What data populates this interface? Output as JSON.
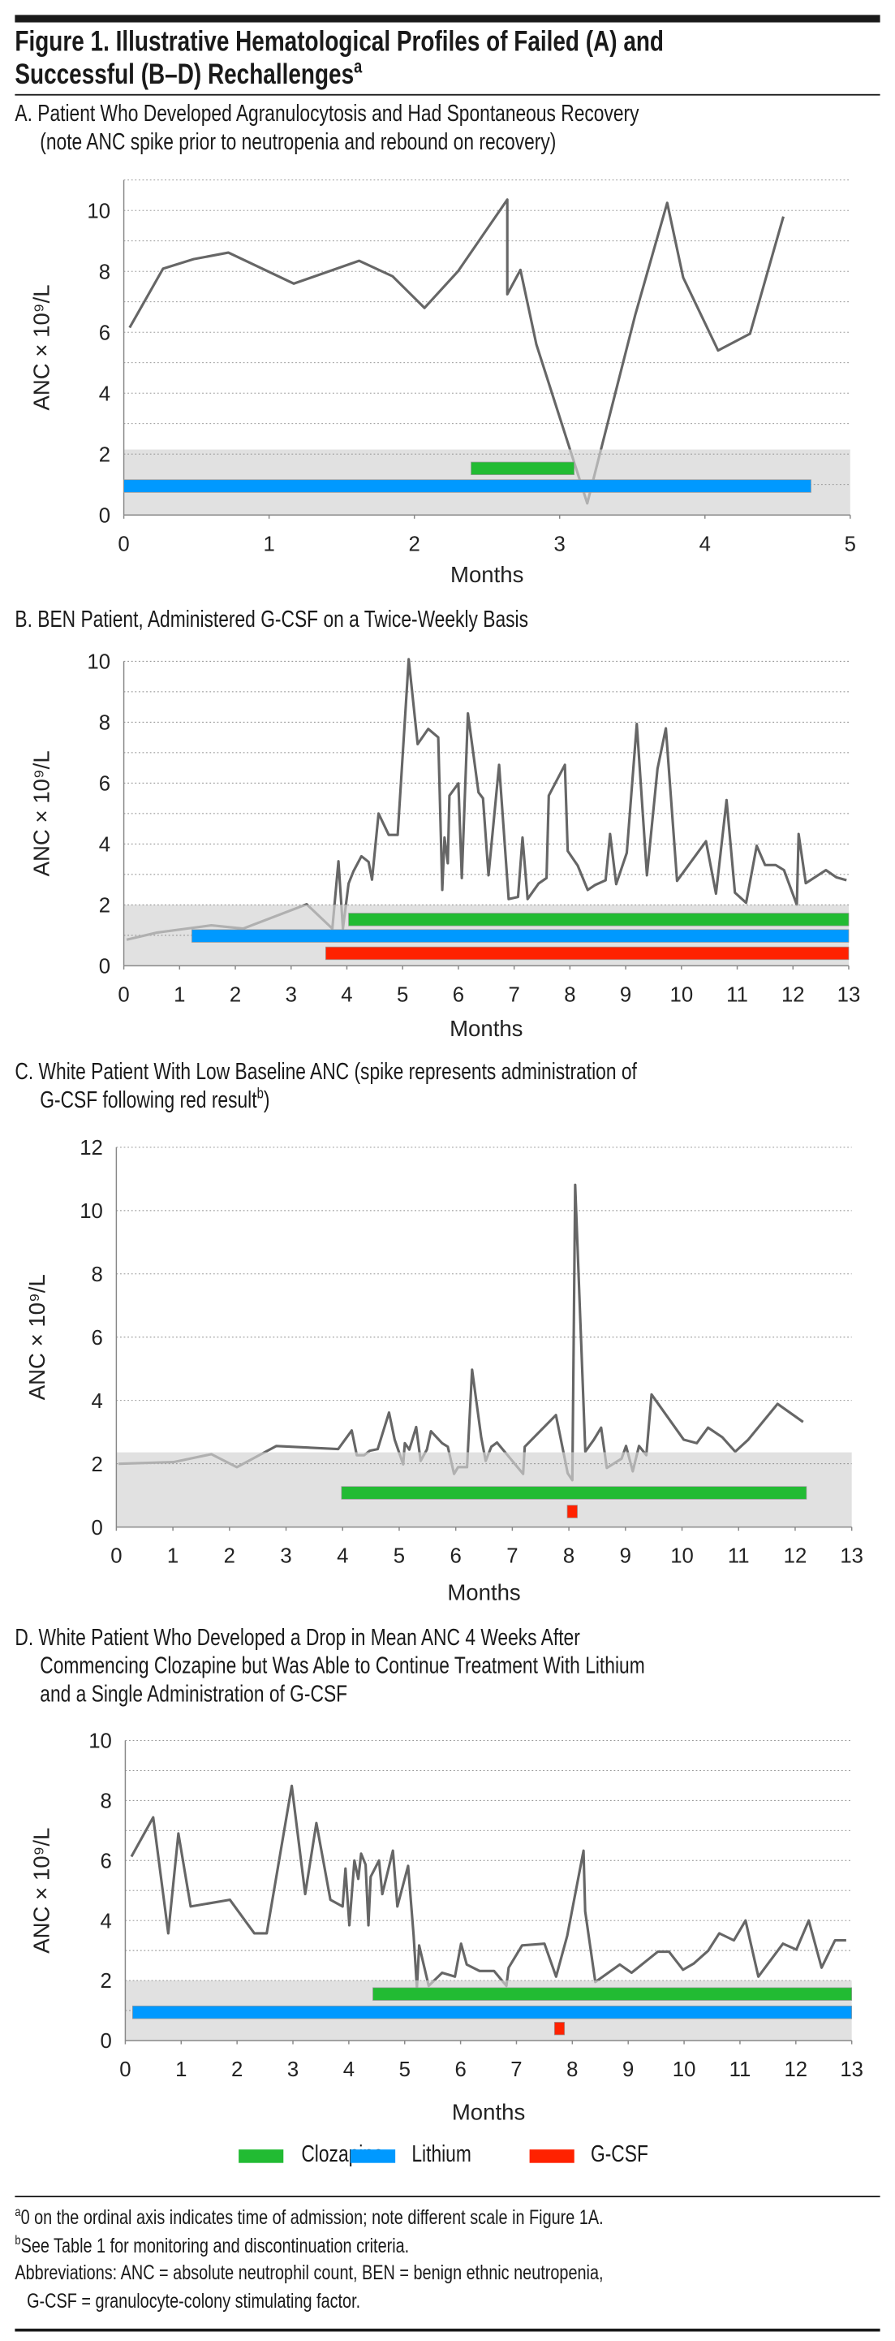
{
  "figure": {
    "title_lines": [
      "Figure 1. Illustrative Hematological Profiles of Failed (A) and",
      "Successful (B–D) Rechallenges"
    ],
    "title_sup": "a"
  },
  "panels": {
    "A": {
      "lines": [
        "A. Patient Who Developed Agranulocytosis and Had Spontaneous Recovery",
        "(note ANC spike prior to neutropenia and rebound on recovery)"
      ]
    },
    "B": {
      "lines": [
        "B. BEN Patient, Administered G-CSF on a Twice-Weekly Basis"
      ]
    },
    "C": {
      "lines": [
        "C. White Patient With Low Baseline ANC (spike represents administration of",
        "G-CSF following red result"
      ],
      "sup": "b",
      "tail": ")"
    },
    "D": {
      "lines": [
        "D. White Patient Who Developed a Drop in Mean ANC 4 Weeks After",
        "Commencing Clozapine but Was Able to Continue Treatment With Lithium",
        "and a Single Administration of G-CSF"
      ]
    }
  },
  "legend": [
    {
      "name": "Clozapine",
      "color": "#22bb33"
    },
    {
      "name": "Lithium",
      "color": "#0099ff"
    },
    {
      "name": "G-CSF",
      "color": "#ff2200"
    }
  ],
  "footnotes": {
    "a_sup": "a",
    "a_text": "0 on the ordinal axis indicates time of admission; note different scale in Figure 1A.",
    "b_sup": "b",
    "b_text": "See Table 1 for monitoring and discontinuation criteria.",
    "abbrev_line1": "Abbreviations: ANC = absolute neutrophil count, BEN = benign ethnic neutropenia,",
    "abbrev_line2": "G-CSF = granulocyte-colony stimulating factor."
  },
  "colors": {
    "line": "#666666",
    "line_low": "#b0b0b0",
    "shade": "#e1e1e1",
    "clozapine": "#22bb33",
    "lithium": "#0099ff",
    "gcsf": "#ff2200"
  },
  "chart_data": [
    {
      "panel": "A",
      "type": "line",
      "xlabel": "Months",
      "ylabel": "ANC × 10⁹/L",
      "xlim": [
        0,
        5
      ],
      "ylim": [
        0,
        11
      ],
      "xticks": [
        0,
        1,
        2,
        3,
        4,
        5
      ],
      "yticks": [
        0,
        2,
        4,
        6,
        8,
        10
      ],
      "grid_step": 1,
      "grid": true,
      "shaded_below": 2.15,
      "points": [
        [
          0.04,
          6.15
        ],
        [
          0.27,
          8.09
        ],
        [
          0.48,
          8.4
        ],
        [
          0.72,
          8.62
        ],
        [
          1.17,
          7.6
        ],
        [
          1.62,
          8.35
        ],
        [
          1.85,
          7.84
        ],
        [
          2.07,
          6.8
        ],
        [
          2.3,
          8.0
        ],
        [
          2.64,
          10.36
        ],
        [
          2.64,
          7.25
        ],
        [
          2.73,
          8.05
        ],
        [
          2.84,
          5.6
        ],
        [
          3.19,
          0.38
        ],
        [
          3.52,
          6.56
        ],
        [
          3.74,
          10.25
        ],
        [
          3.85,
          7.8
        ],
        [
          4.09,
          5.4
        ],
        [
          4.31,
          5.95
        ],
        [
          4.54,
          9.8
        ]
      ],
      "bars": [
        {
          "name": "Clozapine",
          "start": 2.39,
          "end": 3.1,
          "level": 1.53
        },
        {
          "name": "Lithium",
          "start": 0,
          "end": 4.73,
          "level": 0.95
        }
      ]
    },
    {
      "panel": "B",
      "type": "line",
      "xlabel": "Months",
      "ylabel": "ANC × 10⁹/L",
      "xlim": [
        0,
        13
      ],
      "ylim": [
        0,
        10
      ],
      "xticks": [
        0,
        1,
        2,
        3,
        4,
        5,
        6,
        7,
        8,
        9,
        10,
        11,
        12,
        13
      ],
      "yticks": [
        0,
        2,
        4,
        6,
        8,
        10
      ],
      "grid_step": 1,
      "grid": true,
      "shaded_below": 2.0,
      "points": [
        [
          0.05,
          0.86
        ],
        [
          0.59,
          1.09
        ],
        [
          1.21,
          1.24
        ],
        [
          1.57,
          1.33
        ],
        [
          2.14,
          1.22
        ],
        [
          3.28,
          2.02
        ],
        [
          3.74,
          1.22
        ],
        [
          3.85,
          3.43
        ],
        [
          3.93,
          1.22
        ],
        [
          4.03,
          2.7
        ],
        [
          4.12,
          3.11
        ],
        [
          4.26,
          3.6
        ],
        [
          4.39,
          3.41
        ],
        [
          4.45,
          2.83
        ],
        [
          4.57,
          5.0
        ],
        [
          4.75,
          4.3
        ],
        [
          4.91,
          4.3
        ],
        [
          5.11,
          10.07
        ],
        [
          5.27,
          7.28
        ],
        [
          5.46,
          7.78
        ],
        [
          5.64,
          7.5
        ],
        [
          5.71,
          2.49
        ],
        [
          5.75,
          4.21
        ],
        [
          5.81,
          3.37
        ],
        [
          5.84,
          5.59
        ],
        [
          6.0,
          5.99
        ],
        [
          6.06,
          2.88
        ],
        [
          6.17,
          8.29
        ],
        [
          6.36,
          5.69
        ],
        [
          6.44,
          5.5
        ],
        [
          6.54,
          2.97
        ],
        [
          6.73,
          6.6
        ],
        [
          6.9,
          2.19
        ],
        [
          7.07,
          2.26
        ],
        [
          7.15,
          4.21
        ],
        [
          7.24,
          2.19
        ],
        [
          7.44,
          2.7
        ],
        [
          7.58,
          2.88
        ],
        [
          7.62,
          5.59
        ],
        [
          7.91,
          6.6
        ],
        [
          7.96,
          3.77
        ],
        [
          8.14,
          3.29
        ],
        [
          8.32,
          2.49
        ],
        [
          8.45,
          2.65
        ],
        [
          8.64,
          2.81
        ],
        [
          8.72,
          4.33
        ],
        [
          8.83,
          2.68
        ],
        [
          9.02,
          3.71
        ],
        [
          9.2,
          7.94
        ],
        [
          9.38,
          2.97
        ],
        [
          9.57,
          6.47
        ],
        [
          9.72,
          7.8
        ],
        [
          9.92,
          2.79
        ],
        [
          10.44,
          4.09
        ],
        [
          10.62,
          2.37
        ],
        [
          10.81,
          5.44
        ],
        [
          10.96,
          2.4
        ],
        [
          11.16,
          2.07
        ],
        [
          11.35,
          3.94
        ],
        [
          11.5,
          3.31
        ],
        [
          11.69,
          3.31
        ],
        [
          11.84,
          3.14
        ],
        [
          12.07,
          2.0
        ],
        [
          12.1,
          4.33
        ],
        [
          12.23,
          2.71
        ],
        [
          12.59,
          3.14
        ],
        [
          12.78,
          2.9
        ],
        [
          12.96,
          2.81
        ]
      ],
      "bars": [
        {
          "name": "Clozapine",
          "start": 4.03,
          "end": 13,
          "level": 1.52
        },
        {
          "name": "Lithium",
          "start": 1.22,
          "end": 13,
          "level": 0.98
        },
        {
          "name": "G-CSF",
          "start": 3.62,
          "end": 13,
          "level": 0.41
        }
      ]
    },
    {
      "panel": "C",
      "type": "line",
      "xlabel": "Months",
      "ylabel": "ANC × 10⁹/L",
      "xlim": [
        0,
        13
      ],
      "ylim": [
        0,
        12
      ],
      "xticks": [
        0,
        1,
        2,
        3,
        4,
        5,
        6,
        7,
        8,
        9,
        10,
        11,
        12,
        13
      ],
      "yticks": [
        0,
        2,
        4,
        6,
        8,
        10,
        12
      ],
      "grid_step": 2,
      "grid": true,
      "shaded_below": 2.36,
      "points": [
        [
          0.04,
          2.0
        ],
        [
          1.01,
          2.05
        ],
        [
          1.68,
          2.3
        ],
        [
          2.13,
          1.89
        ],
        [
          2.83,
          2.56
        ],
        [
          3.92,
          2.46
        ],
        [
          4.16,
          3.05
        ],
        [
          4.25,
          2.27
        ],
        [
          4.38,
          2.27
        ],
        [
          4.48,
          2.41
        ],
        [
          4.62,
          2.46
        ],
        [
          4.82,
          3.62
        ],
        [
          4.92,
          2.76
        ],
        [
          5.07,
          1.98
        ],
        [
          5.1,
          2.65
        ],
        [
          5.18,
          2.45
        ],
        [
          5.3,
          3.16
        ],
        [
          5.38,
          2.09
        ],
        [
          5.49,
          2.45
        ],
        [
          5.56,
          3.03
        ],
        [
          5.76,
          2.65
        ],
        [
          5.86,
          2.54
        ],
        [
          5.97,
          1.68
        ],
        [
          6.04,
          1.89
        ],
        [
          6.2,
          1.89
        ],
        [
          6.29,
          4.97
        ],
        [
          6.45,
          2.84
        ],
        [
          6.53,
          2.09
        ],
        [
          6.63,
          2.54
        ],
        [
          6.73,
          2.67
        ],
        [
          7.19,
          1.68
        ],
        [
          7.22,
          2.54
        ],
        [
          7.77,
          3.54
        ],
        [
          7.98,
          1.7
        ],
        [
          8.06,
          1.48
        ],
        [
          8.11,
          10.81
        ],
        [
          8.29,
          2.38
        ],
        [
          8.44,
          2.76
        ],
        [
          8.57,
          3.14
        ],
        [
          8.67,
          1.87
        ],
        [
          8.93,
          2.16
        ],
        [
          9.01,
          2.56
        ],
        [
          9.13,
          1.76
        ],
        [
          9.24,
          2.56
        ],
        [
          9.37,
          2.27
        ],
        [
          9.46,
          4.19
        ],
        [
          10.03,
          2.76
        ],
        [
          10.26,
          2.65
        ],
        [
          10.46,
          3.14
        ],
        [
          10.71,
          2.84
        ],
        [
          10.94,
          2.38
        ],
        [
          11.17,
          2.76
        ],
        [
          11.69,
          3.89
        ],
        [
          12.14,
          3.32
        ]
      ],
      "bars": [
        {
          "name": "Clozapine",
          "start": 3.98,
          "end": 12.2,
          "level": 1.08
        },
        {
          "name": "G-CSF",
          "start": 7.97,
          "end": 8.15,
          "level": 0.49
        }
      ]
    },
    {
      "panel": "D",
      "type": "line",
      "xlabel": "Months",
      "ylabel": "ANC × 10⁹/L",
      "xlim": [
        0,
        13
      ],
      "ylim": [
        0,
        10
      ],
      "xticks": [
        0,
        1,
        2,
        3,
        4,
        5,
        6,
        7,
        8,
        9,
        10,
        11,
        12,
        13
      ],
      "yticks": [
        0,
        2,
        4,
        6,
        8,
        10
      ],
      "grid_step": 1,
      "grid": true,
      "shaded_below": 2.0,
      "points": [
        [
          0.11,
          6.13
        ],
        [
          0.5,
          7.44
        ],
        [
          0.77,
          3.57
        ],
        [
          0.95,
          6.9
        ],
        [
          1.17,
          4.47
        ],
        [
          1.87,
          4.69
        ],
        [
          2.31,
          3.57
        ],
        [
          2.53,
          3.57
        ],
        [
          2.98,
          8.49
        ],
        [
          3.22,
          4.88
        ],
        [
          3.42,
          7.25
        ],
        [
          3.67,
          4.69
        ],
        [
          3.89,
          4.47
        ],
        [
          3.94,
          5.73
        ],
        [
          4.01,
          3.84
        ],
        [
          4.1,
          6.0
        ],
        [
          4.17,
          5.39
        ],
        [
          4.22,
          6.23
        ],
        [
          4.3,
          5.86
        ],
        [
          4.35,
          3.84
        ],
        [
          4.39,
          5.46
        ],
        [
          4.54,
          6.0
        ],
        [
          4.6,
          4.88
        ],
        [
          4.79,
          6.33
        ],
        [
          4.87,
          4.47
        ],
        [
          5.06,
          5.82
        ],
        [
          5.16,
          3.5
        ],
        [
          5.22,
          1.75
        ],
        [
          5.26,
          3.17
        ],
        [
          5.43,
          1.82
        ],
        [
          5.67,
          2.26
        ],
        [
          5.9,
          2.13
        ],
        [
          6.01,
          3.23
        ],
        [
          6.11,
          2.53
        ],
        [
          6.34,
          2.32
        ],
        [
          6.6,
          2.32
        ],
        [
          6.82,
          1.82
        ],
        [
          6.86,
          2.43
        ],
        [
          7.1,
          3.17
        ],
        [
          7.5,
          3.23
        ],
        [
          7.71,
          2.13
        ],
        [
          7.91,
          3.5
        ],
        [
          8.2,
          6.33
        ],
        [
          8.23,
          4.31
        ],
        [
          8.41,
          1.95
        ],
        [
          8.85,
          2.53
        ],
        [
          9.06,
          2.26
        ],
        [
          9.53,
          2.96
        ],
        [
          9.73,
          2.96
        ],
        [
          9.98,
          2.36
        ],
        [
          10.17,
          2.56
        ],
        [
          10.43,
          2.99
        ],
        [
          10.63,
          3.57
        ],
        [
          10.89,
          3.34
        ],
        [
          11.1,
          4.0
        ],
        [
          11.33,
          2.13
        ],
        [
          11.77,
          3.23
        ],
        [
          12.01,
          3.03
        ],
        [
          12.23,
          4.0
        ],
        [
          12.46,
          2.43
        ],
        [
          12.7,
          3.34
        ],
        [
          12.9,
          3.34
        ]
      ],
      "bars": [
        {
          "name": "Clozapine",
          "start": 4.43,
          "end": 13,
          "level": 1.55
        },
        {
          "name": "Lithium",
          "start": 0.13,
          "end": 13,
          "level": 0.94
        },
        {
          "name": "G-CSF",
          "start": 7.68,
          "end": 7.86,
          "level": 0.4
        }
      ]
    }
  ]
}
